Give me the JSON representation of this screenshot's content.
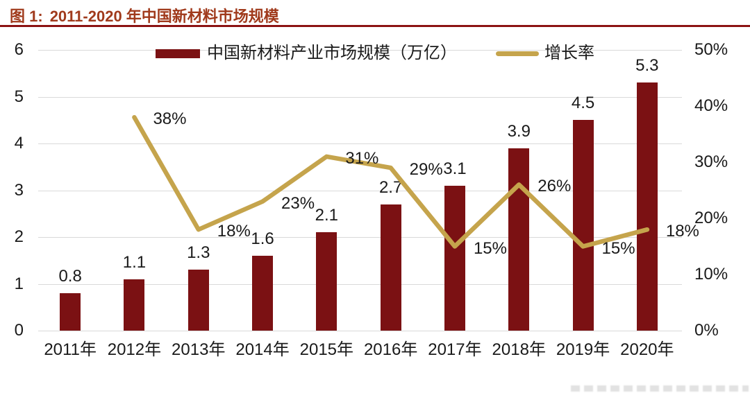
{
  "title": {
    "label": "图 1:",
    "text": "2011-2020 年中国新材料市场规模"
  },
  "colors": {
    "bar": "#7B1113",
    "line": "#C5A44C",
    "title": "#A03A1C",
    "underline": "#8C1212",
    "grid": "#D9D9D9",
    "text": "#1A1A1A"
  },
  "chart_data": {
    "type": "bar+line",
    "title": "图 1: 2011-2020 年中国新材料市场规模",
    "categories": [
      "2011年",
      "2012年",
      "2013年",
      "2014年",
      "2015年",
      "2016年",
      "2017年",
      "2018年",
      "2019年",
      "2020年"
    ],
    "series": [
      {
        "name": "中国新材料产业市场规模（万亿）",
        "type": "bar",
        "axis": "left",
        "color": "#7B1113",
        "values": [
          0.8,
          1.1,
          1.3,
          1.6,
          2.1,
          2.7,
          3.1,
          3.9,
          4.5,
          5.3
        ],
        "labels": [
          "0.8",
          "1.1",
          "1.3",
          "1.6",
          "2.1",
          "2.7",
          "3.1",
          "3.9",
          "4.5",
          "5.3"
        ]
      },
      {
        "name": "增长率",
        "type": "line",
        "axis": "right",
        "color": "#C5A44C",
        "values": [
          null,
          38,
          18,
          23,
          31,
          29,
          15,
          26,
          15,
          18
        ],
        "labels": [
          "",
          "38%",
          "18%",
          "23%",
          "31%",
          "29%",
          "15%",
          "26%",
          "15%",
          "18%"
        ]
      }
    ],
    "left_axis": {
      "min": 0,
      "max": 6,
      "ticks": [
        "0",
        "1",
        "2",
        "3",
        "4",
        "5",
        "6"
      ]
    },
    "right_axis": {
      "min": 0,
      "max": 50,
      "ticks": [
        "0%",
        "10%",
        "20%",
        "30%",
        "40%",
        "50%"
      ]
    },
    "grid": true,
    "legend_position": "top-center"
  }
}
